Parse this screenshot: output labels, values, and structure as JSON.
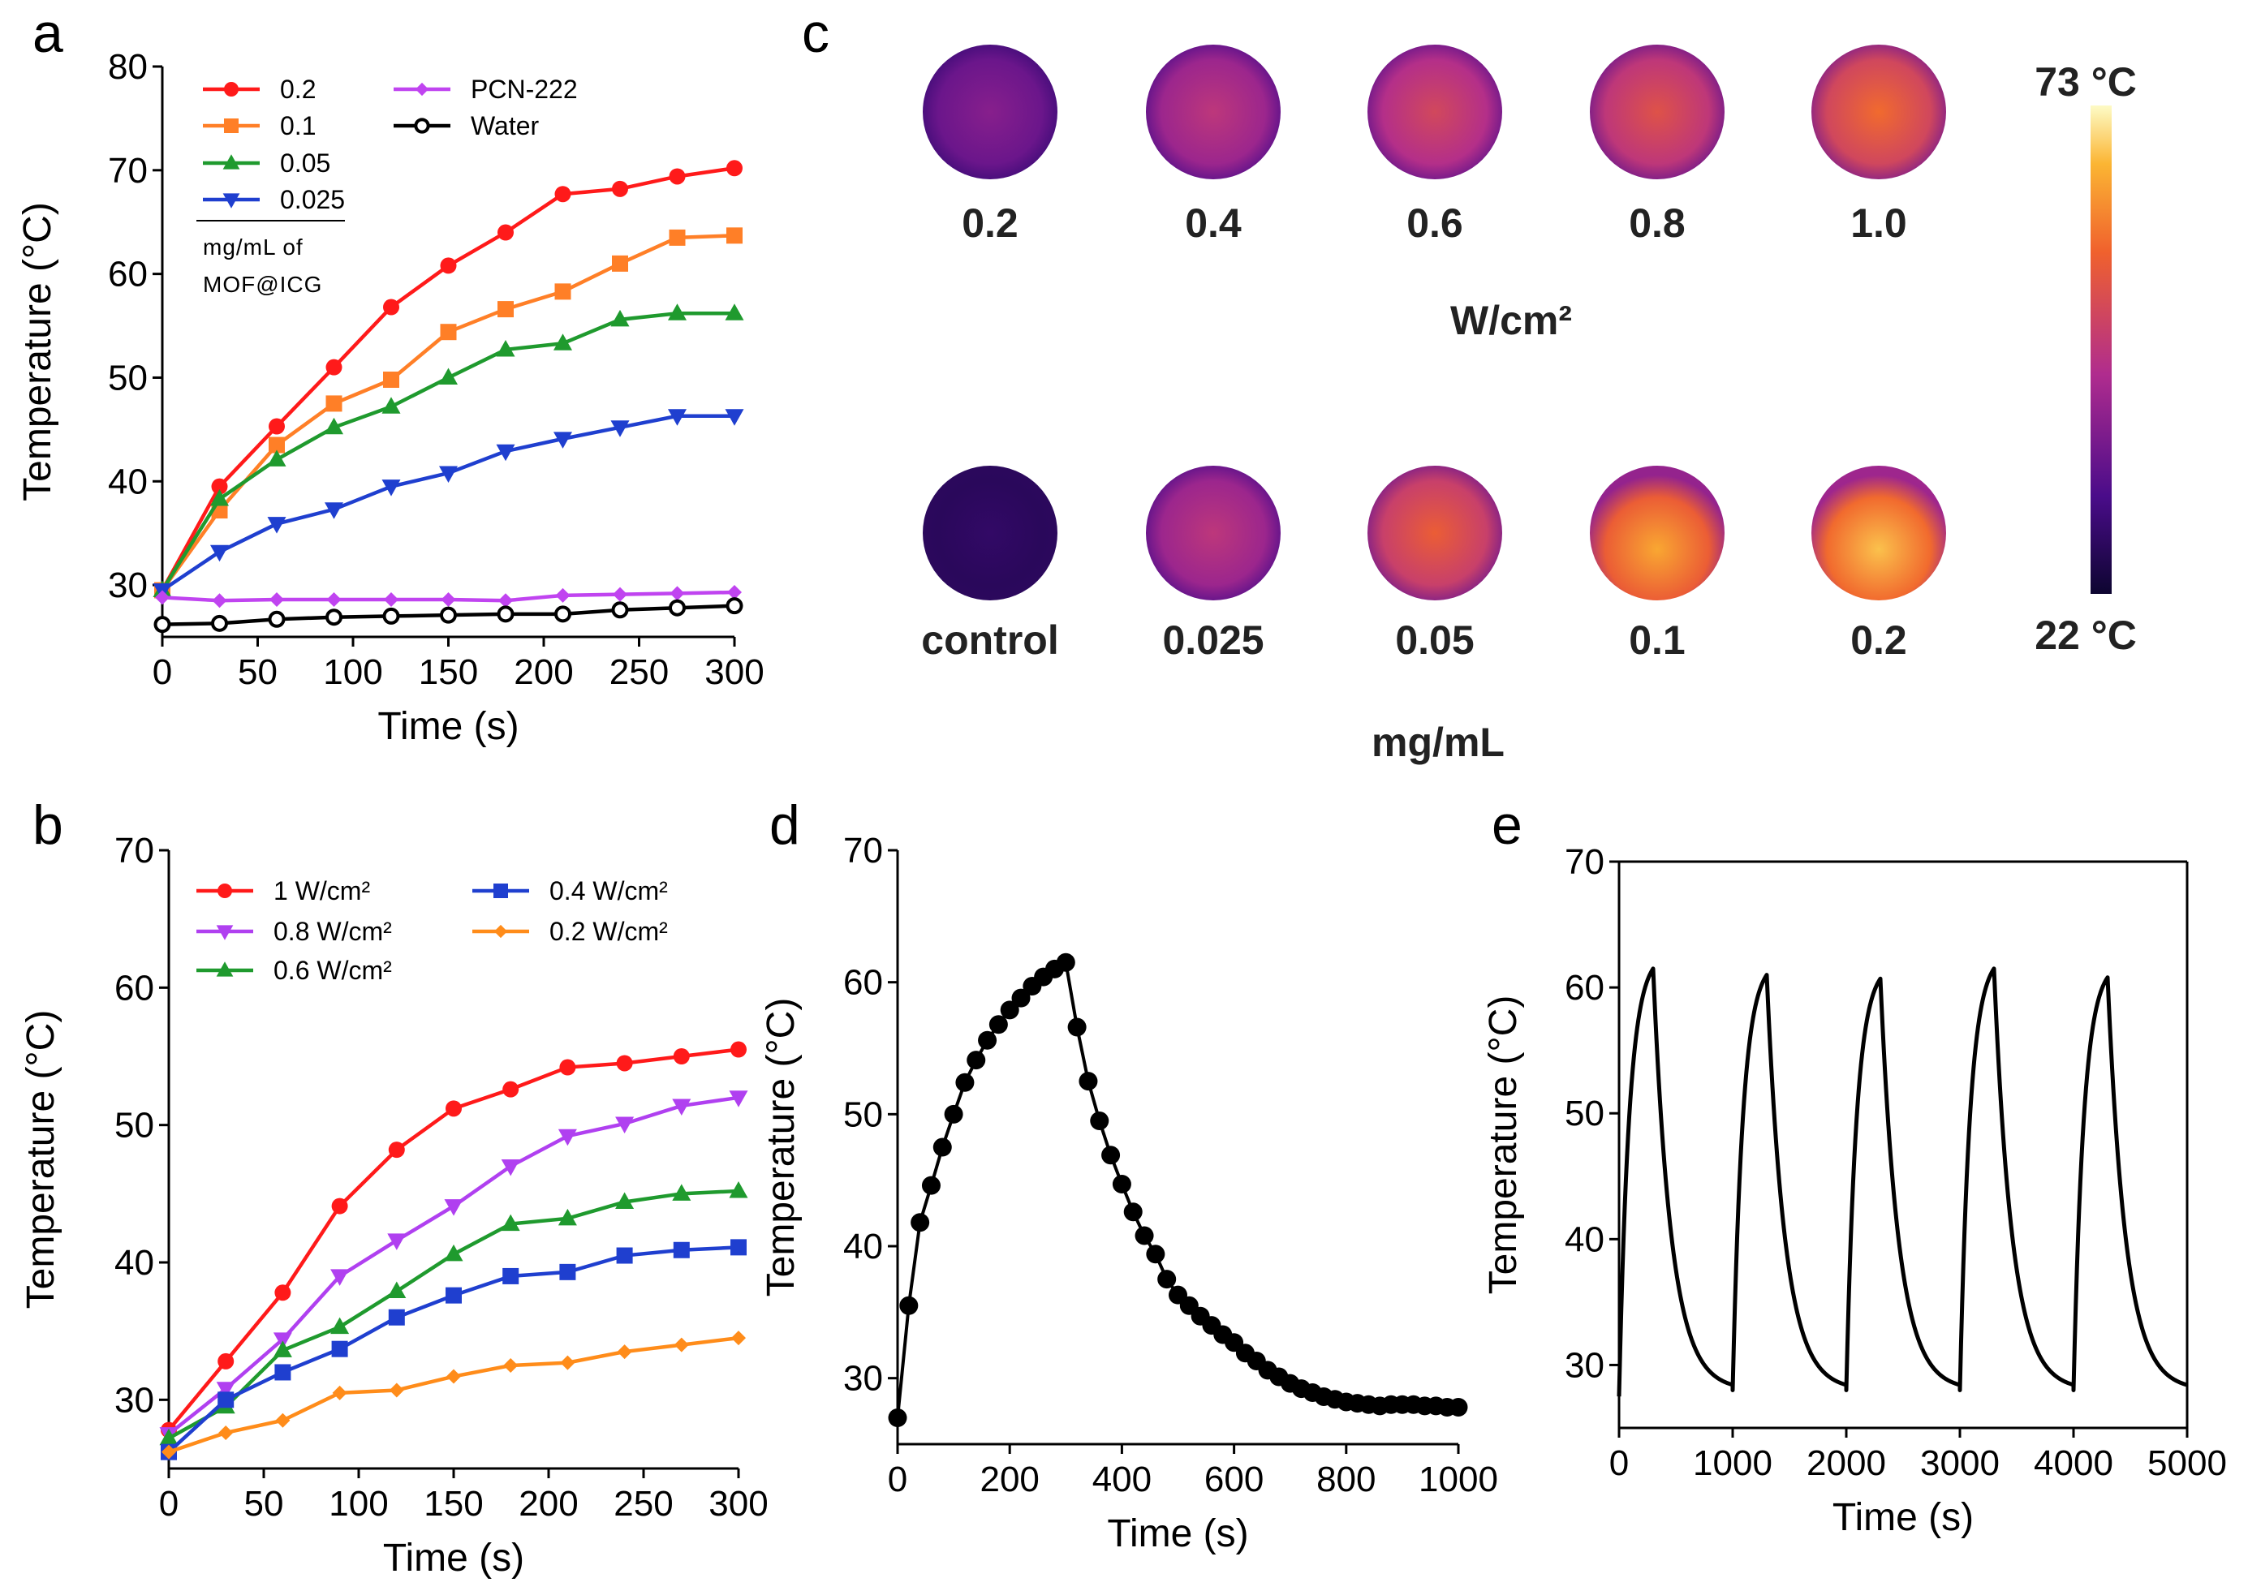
{
  "panels": {
    "a": "a",
    "b": "b",
    "c": "c",
    "d": "d",
    "e": "e"
  },
  "chart_data": [
    {
      "id": "a",
      "type": "line",
      "xlabel": "Time (s)",
      "ylabel": "Temperature (°C)",
      "xlim": [
        0,
        300
      ],
      "ylim": [
        25,
        80
      ],
      "xticks": [
        0,
        50,
        100,
        150,
        200,
        250,
        300
      ],
      "yticks": [
        30,
        40,
        50,
        60,
        70,
        80
      ],
      "x": [
        0,
        30,
        60,
        90,
        120,
        150,
        180,
        210,
        240,
        270,
        300
      ],
      "legend_note": [
        "mg/mL of",
        "MOF@ICG"
      ],
      "series": [
        {
          "name": "0.2",
          "color": "#ff1a1a",
          "marker": "circle",
          "values": [
            29.5,
            39.5,
            45.3,
            51,
            56.8,
            60.8,
            64,
            67.7,
            68.2,
            69.4,
            70.2
          ]
        },
        {
          "name": "0.1",
          "color": "#ff7f27",
          "marker": "square",
          "values": [
            29.5,
            37.2,
            43.5,
            47.5,
            49.8,
            54.4,
            56.6,
            58.3,
            61,
            63.5,
            63.7
          ]
        },
        {
          "name": "0.05",
          "color": "#1f9a2e",
          "marker": "triangle-up",
          "values": [
            29.5,
            38.3,
            42.1,
            45.2,
            47.2,
            50,
            52.7,
            53.3,
            55.6,
            56.2,
            56.2
          ]
        },
        {
          "name": "0.025",
          "color": "#1f3fcf",
          "marker": "triangle-down",
          "values": [
            29.5,
            33.2,
            35.9,
            37.3,
            39.5,
            40.8,
            42.9,
            44.1,
            45.2,
            46.3,
            46.3
          ]
        },
        {
          "name": "PCN-222",
          "color": "#c044f0",
          "marker": "diamond",
          "values": [
            28.8,
            28.5,
            28.6,
            28.6,
            28.6,
            28.6,
            28.5,
            29,
            29.1,
            29.2,
            29.3
          ]
        },
        {
          "name": "Water",
          "color": "#000000",
          "marker": "open-circle",
          "values": [
            26.2,
            26.3,
            26.7,
            26.9,
            27,
            27.1,
            27.2,
            27.2,
            27.6,
            27.8,
            28
          ]
        }
      ]
    },
    {
      "id": "b",
      "type": "line",
      "xlabel": "Time (s)",
      "ylabel": "Temperature (°C)",
      "xlim": [
        0,
        300
      ],
      "ylim": [
        25,
        70
      ],
      "xticks": [
        0,
        50,
        100,
        150,
        200,
        250,
        300
      ],
      "yticks": [
        30,
        40,
        50,
        60,
        70
      ],
      "x": [
        0,
        30,
        60,
        90,
        120,
        150,
        180,
        210,
        240,
        270,
        300
      ],
      "series": [
        {
          "name": "1 W/cm²",
          "color": "#ff1a1a",
          "marker": "circle",
          "values": [
            27.8,
            32.8,
            37.8,
            44.1,
            48.2,
            51.2,
            52.6,
            54.2,
            54.5,
            55,
            55.5
          ]
        },
        {
          "name": "0.8 W/cm²",
          "color": "#b040f0",
          "marker": "triangle-down",
          "values": [
            27.5,
            30.8,
            34.4,
            39,
            41.6,
            44.1,
            47,
            49.2,
            50.1,
            51.4,
            52
          ]
        },
        {
          "name": "0.6 W/cm²",
          "color": "#1f9a2e",
          "marker": "triangle-up",
          "values": [
            27.2,
            29.5,
            33.6,
            35.3,
            37.9,
            40.6,
            42.8,
            43.2,
            44.4,
            45,
            45.2
          ]
        },
        {
          "name": "0.4 W/cm²",
          "color": "#1f3fcf",
          "marker": "square",
          "values": [
            26.2,
            30,
            32,
            33.7,
            36,
            37.6,
            39,
            39.3,
            40.5,
            40.9,
            41.1
          ]
        },
        {
          "name": "0.2 W/cm²",
          "color": "#ff8c1a",
          "marker": "diamond",
          "values": [
            26.2,
            27.6,
            28.5,
            30.5,
            30.7,
            31.7,
            32.5,
            32.7,
            33.5,
            34,
            34.5
          ]
        }
      ]
    },
    {
      "id": "d",
      "type": "line",
      "xlabel": "Time (s)",
      "ylabel": "Temperature (°C)",
      "xlim": [
        0,
        1000
      ],
      "ylim": [
        25,
        70
      ],
      "xticks": [
        0,
        200,
        400,
        600,
        800,
        1000
      ],
      "yticks": [
        30,
        40,
        50,
        60,
        70
      ],
      "series": [
        {
          "name": "MOF@ICG",
          "color": "#000000",
          "marker": "circle",
          "x": [
            0,
            20,
            40,
            60,
            80,
            100,
            120,
            140,
            160,
            180,
            200,
            220,
            240,
            260,
            280,
            300,
            320,
            340,
            360,
            380,
            400,
            420,
            440,
            460,
            480,
            500,
            520,
            540,
            560,
            580,
            600,
            620,
            640,
            660,
            680,
            700,
            720,
            740,
            760,
            780,
            800,
            820,
            840,
            860,
            880,
            900,
            920,
            940,
            960,
            980,
            1000
          ],
          "values": [
            27,
            35.5,
            41.8,
            44.6,
            47.5,
            50,
            52.4,
            54.1,
            55.6,
            56.8,
            57.9,
            58.8,
            59.7,
            60.4,
            61,
            61.5,
            56.6,
            52.5,
            49.5,
            46.9,
            44.7,
            42.6,
            40.8,
            39.4,
            37.5,
            36.3,
            35.5,
            34.7,
            34,
            33.3,
            32.7,
            31.9,
            31.3,
            30.6,
            30.1,
            29.6,
            29.2,
            28.9,
            28.6,
            28.4,
            28.2,
            28.1,
            28,
            27.9,
            28,
            28,
            28,
            27.9,
            27.9,
            27.8,
            27.8
          ]
        }
      ]
    },
    {
      "id": "e",
      "type": "line",
      "xlabel": "Time (s)",
      "ylabel": "Temperature (°C)",
      "xlim": [
        0,
        5000
      ],
      "ylim": [
        25,
        70
      ],
      "xticks": [
        0,
        1000,
        2000,
        3000,
        4000,
        5000
      ],
      "yticks": [
        30,
        40,
        50,
        60,
        70
      ],
      "cycles": 5,
      "cycle_length_s": 1000,
      "heating_s": 300,
      "peaks": [
        61.5,
        61,
        60.7,
        61.5,
        60.8
      ],
      "start_min": 27.5,
      "base": 28
    }
  ],
  "thermal_images": {
    "top_row": {
      "labels": [
        "0.2",
        "0.4",
        "0.6",
        "0.8",
        "1.0"
      ],
      "intensities": [
        0.35,
        0.5,
        0.58,
        0.63,
        0.72
      ],
      "unit": "W/cm²"
    },
    "bottom_row": {
      "labels": [
        "control",
        "0.025",
        "0.05",
        "0.1",
        "0.2"
      ],
      "intensities": [
        0.12,
        0.5,
        0.68,
        0.85,
        0.9
      ],
      "unit": "mg/mL"
    },
    "colorbar": {
      "max_label": "73 °C",
      "min_label": "22 °C"
    }
  }
}
